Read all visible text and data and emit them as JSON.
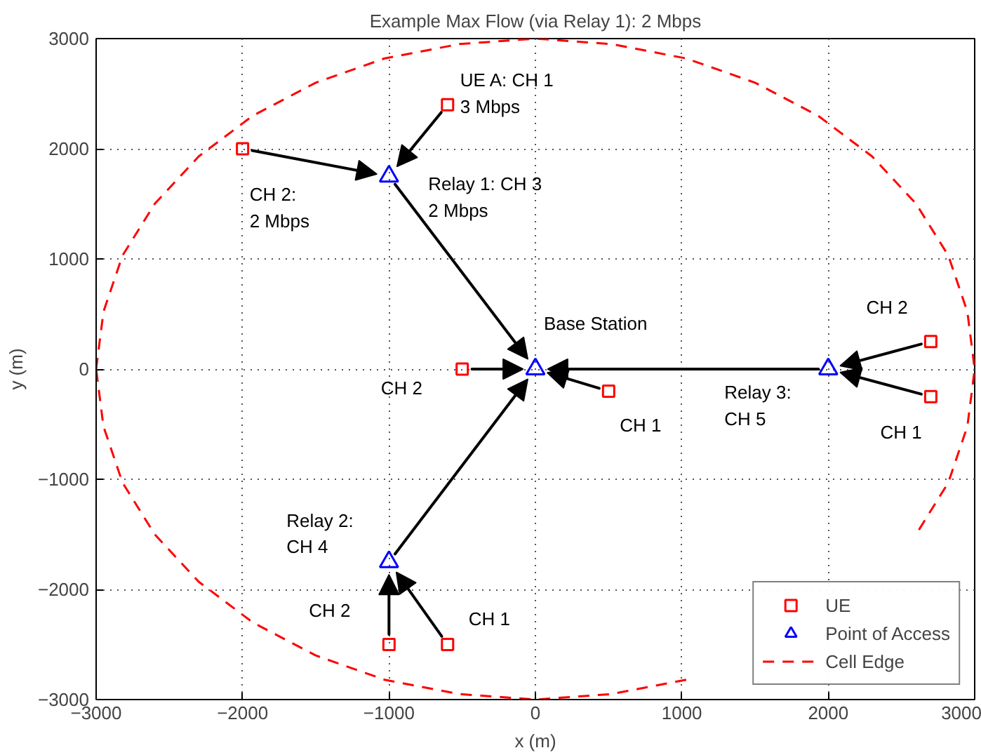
{
  "chart_data": {
    "type": "scatter",
    "title": "Example Max Flow (via Relay 1): 2 Mbps",
    "xlabel": "x (m)",
    "ylabel": "y (m)",
    "xlim": [
      -3000,
      3000
    ],
    "ylim": [
      -3000,
      3000
    ],
    "xticks": [
      {
        "value": -3000,
        "label": "−3000"
      },
      {
        "value": -2000,
        "label": "−2000"
      },
      {
        "value": -1000,
        "label": "−1000"
      },
      0,
      1000,
      2000,
      3000
    ],
    "yticks": [
      {
        "value": -3000,
        "label": "−3000"
      },
      {
        "value": -2000,
        "label": "−2000"
      },
      {
        "value": -1000,
        "label": "−1000"
      },
      0,
      1000,
      2000,
      3000
    ],
    "grid": true,
    "legend": "bottom right",
    "series": [
      {
        "name": "UE",
        "color": "#ff0000",
        "marker": "square",
        "x": [
          -600,
          -2000,
          -500,
          500,
          2700,
          2700,
          -1000,
          -600
        ],
        "values": [
          2400,
          2000,
          0,
          -200,
          250,
          -250,
          -2500,
          -2500
        ]
      },
      {
        "name": "Point of Access",
        "color": "#0000ff",
        "marker": "triangle",
        "x": [
          -1000,
          0,
          2000,
          -1000
        ],
        "values": [
          1750,
          0,
          0,
          -1750
        ]
      },
      {
        "type": "line",
        "name": "Cell Edge",
        "color": "#ff0000",
        "line_style": "dashed",
        "x": [
          -3000,
          -2950,
          -2820,
          -2600,
          -2300,
          -1930,
          -1500,
          -1030,
          -520,
          0,
          520,
          1030,
          1500,
          1930,
          2300,
          2600,
          2820,
          2950,
          3000,
          2950,
          2820,
          2600,
          2300,
          1930,
          1500,
          1030,
          520,
          0,
          -520,
          -1030,
          -1500,
          -1930,
          -2300,
          -2600,
          -2820,
          -2950,
          -3000
        ],
        "values": [
          0,
          520,
          1030,
          1500,
          1930,
          2300,
          2600,
          2820,
          2950,
          3000,
          2950,
          2820,
          2600,
          2300,
          1930,
          1500,
          1030,
          520,
          0,
          -520,
          -1030,
          -1500,
          null,
          null,
          null,
          -2820,
          -2950,
          -3000,
          -2950,
          -2820,
          -2600,
          -2300,
          -1930,
          -1500,
          -1030,
          -520,
          0
        ]
      }
    ],
    "annotations": [
      {
        "text": "UE A: CH 1\n3 Mbps",
        "x": -600,
        "y": 2400
      },
      {
        "text": "CH 2:\n2 Mbps",
        "x": -2000,
        "y": 2000
      },
      {
        "text": "Relay 1: CH 3\n  2 Mbps",
        "x": -1000,
        "y": 1750
      },
      {
        "text": "Base Station",
        "x": 0,
        "y": 0
      },
      {
        "text": "CH 2",
        "x": -500,
        "y": 0
      },
      {
        "text": "CH 1",
        "x": 500,
        "y": -200
      },
      {
        "text": "Relay 3:\nCH 5",
        "x": 2000,
        "y": 0
      },
      {
        "text": "CH 2",
        "x": 2700,
        "y": 250
      },
      {
        "text": "CH 1",
        "x": 2700,
        "y": -250
      },
      {
        "text": "Relay 2:\nCH 4",
        "x": -1000,
        "y": -1750
      },
      {
        "text": "CH 2",
        "x": -1000,
        "y": -2500
      },
      {
        "text": "CH 1",
        "x": -600,
        "y": -2500
      }
    ]
  }
}
